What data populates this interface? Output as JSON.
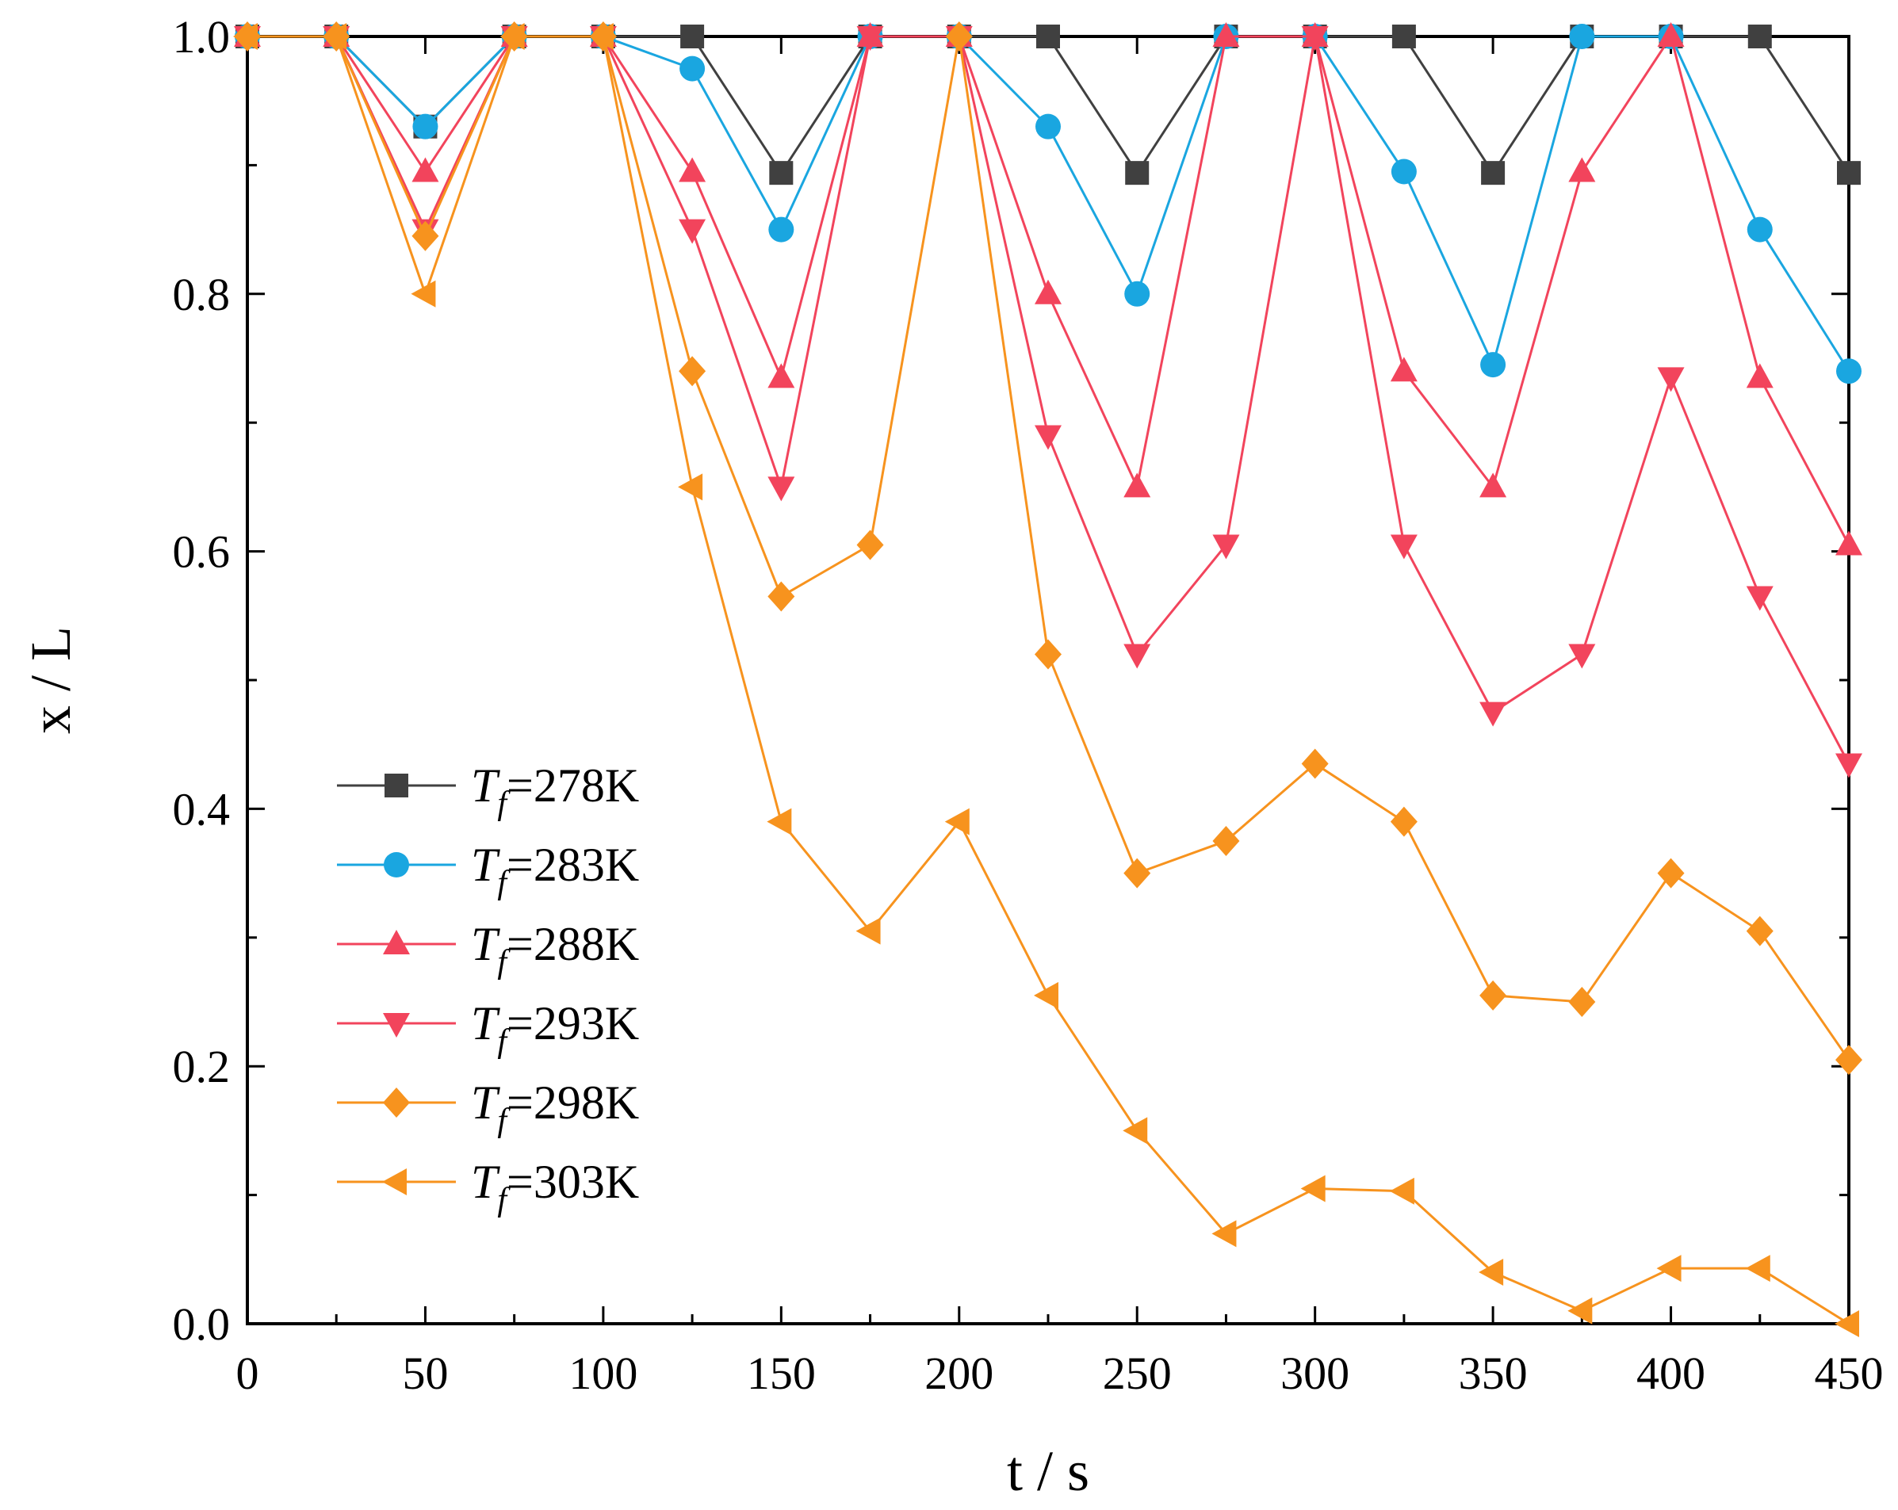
{
  "chart_data": {
    "type": "line",
    "title": "",
    "xlabel": "t / s",
    "ylabel": "x / L",
    "xlim": [
      0,
      450
    ],
    "ylim": [
      0,
      1.0
    ],
    "x_ticks": [
      0,
      50,
      100,
      150,
      200,
      250,
      300,
      350,
      400,
      450
    ],
    "x_tick_labels": [
      "0",
      "50",
      "100",
      "150",
      "200",
      "250",
      "300",
      "350",
      "400",
      "450"
    ],
    "y_ticks": [
      0.0,
      0.2,
      0.4,
      0.6,
      0.8,
      1.0
    ],
    "y_tick_labels": [
      "0.0",
      "0.2",
      "0.4",
      "0.6",
      "0.8",
      "1.0"
    ],
    "legend_position": "left-center",
    "x": [
      0,
      25,
      50,
      75,
      100,
      125,
      150,
      175,
      200,
      225,
      250,
      275,
      300,
      325,
      350,
      375,
      400,
      425,
      450
    ],
    "series": [
      {
        "name": "T_f=278K",
        "label_main": "T",
        "label_sub": "f",
        "label_rest": "=278K",
        "color": "#404040",
        "marker": "square",
        "values": [
          1.0,
          1.0,
          0.93,
          1.0,
          1.0,
          1.0,
          0.894,
          1.0,
          1.0,
          1.0,
          0.894,
          1.0,
          1.0,
          1.0,
          0.894,
          1.0,
          1.0,
          1.0,
          0.894
        ]
      },
      {
        "name": "T_f=283K",
        "label_main": "T",
        "label_sub": "f",
        "label_rest": "=283K",
        "color": "#1aa6e0",
        "marker": "circle",
        "values": [
          1.0,
          1.0,
          0.93,
          1.0,
          1.0,
          0.975,
          0.85,
          1.0,
          1.0,
          0.93,
          0.8,
          1.0,
          1.0,
          0.895,
          0.745,
          1.0,
          1.0,
          0.85,
          0.74
        ]
      },
      {
        "name": "T_f=288K",
        "label_main": "T",
        "label_sub": "f",
        "label_rest": "=288K",
        "color": "#f2445c",
        "marker": "triangle-up",
        "values": [
          1.0,
          1.0,
          0.895,
          1.0,
          1.0,
          0.895,
          0.735,
          1.0,
          1.0,
          0.8,
          0.65,
          1.0,
          1.0,
          0.74,
          0.65,
          0.895,
          1.0,
          0.735,
          0.605
        ]
      },
      {
        "name": "T_f=293K",
        "label_main": "T",
        "label_sub": "f",
        "label_rest": "=293K",
        "color": "#f2445c",
        "marker": "triangle-down",
        "values": [
          1.0,
          1.0,
          0.85,
          1.0,
          1.0,
          0.85,
          0.65,
          1.0,
          1.0,
          0.69,
          0.52,
          0.605,
          1.0,
          0.605,
          0.475,
          0.52,
          0.735,
          0.565,
          0.435
        ]
      },
      {
        "name": "T_f=298K",
        "label_main": "T",
        "label_sub": "f",
        "label_rest": "=298K",
        "color": "#f7931e",
        "marker": "diamond",
        "values": [
          1.0,
          1.0,
          0.845,
          1.0,
          1.0,
          0.74,
          0.565,
          0.605,
          1.0,
          0.52,
          0.35,
          0.375,
          0.435,
          0.39,
          0.255,
          0.25,
          0.35,
          0.305,
          0.205
        ]
      },
      {
        "name": "T_f=303K",
        "label_main": "T",
        "label_sub": "f",
        "label_rest": "=303K",
        "color": "#f7931e",
        "marker": "triangle-left",
        "values": [
          1.0,
          1.0,
          0.8,
          1.0,
          1.0,
          0.65,
          0.39,
          0.305,
          0.39,
          0.255,
          0.15,
          0.07,
          0.105,
          0.103,
          0.04,
          0.01,
          0.043,
          0.043,
          0.0
        ]
      }
    ]
  }
}
